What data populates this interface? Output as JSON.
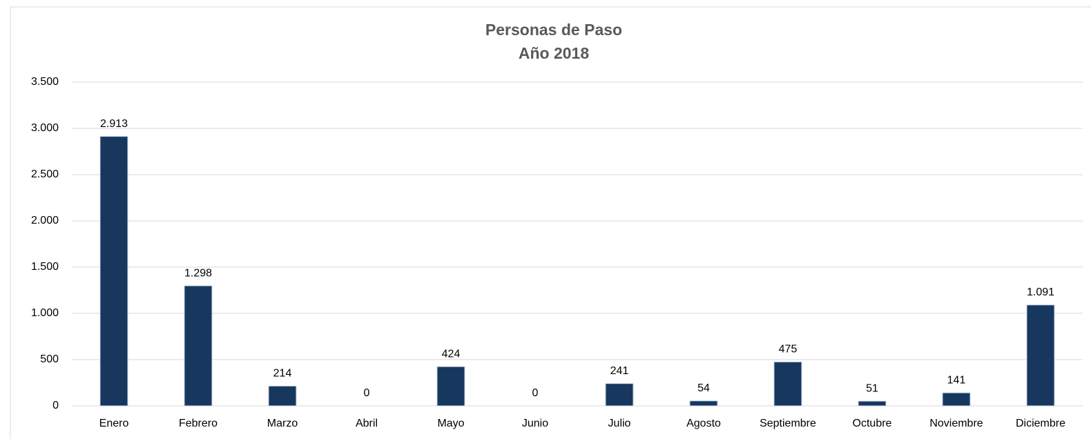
{
  "chart_data": {
    "type": "bar",
    "title": [
      "Personas de Paso",
      "Año 2018"
    ],
    "categories": [
      "Enero",
      "Febrero",
      "Marzo",
      "Abril",
      "Mayo",
      "Junio",
      "Julio",
      "Agosto",
      "Septiembre",
      "Octubre",
      "Noviembre",
      "Diciembre"
    ],
    "values": [
      2913,
      1298,
      214,
      0,
      424,
      0,
      241,
      54,
      475,
      51,
      141,
      1091
    ],
    "value_labels": [
      "2.913",
      "1.298",
      "214",
      "0",
      "424",
      "0",
      "241",
      "54",
      "475",
      "51",
      "141",
      "1.091"
    ],
    "color": "#17375e",
    "ylim": [
      0,
      3500
    ],
    "yticks": [
      0,
      500,
      {
        "value": 1000,
        "label": "1.000"
      },
      {
        "value": 1500,
        "label": "1.500"
      },
      {
        "value": 2000,
        "label": "2.000"
      },
      {
        "value": 2500,
        "label": "2.500"
      },
      {
        "value": 3000,
        "label": "3.000"
      },
      {
        "value": 3500,
        "label": "3.500"
      }
    ],
    "grid": true
  }
}
